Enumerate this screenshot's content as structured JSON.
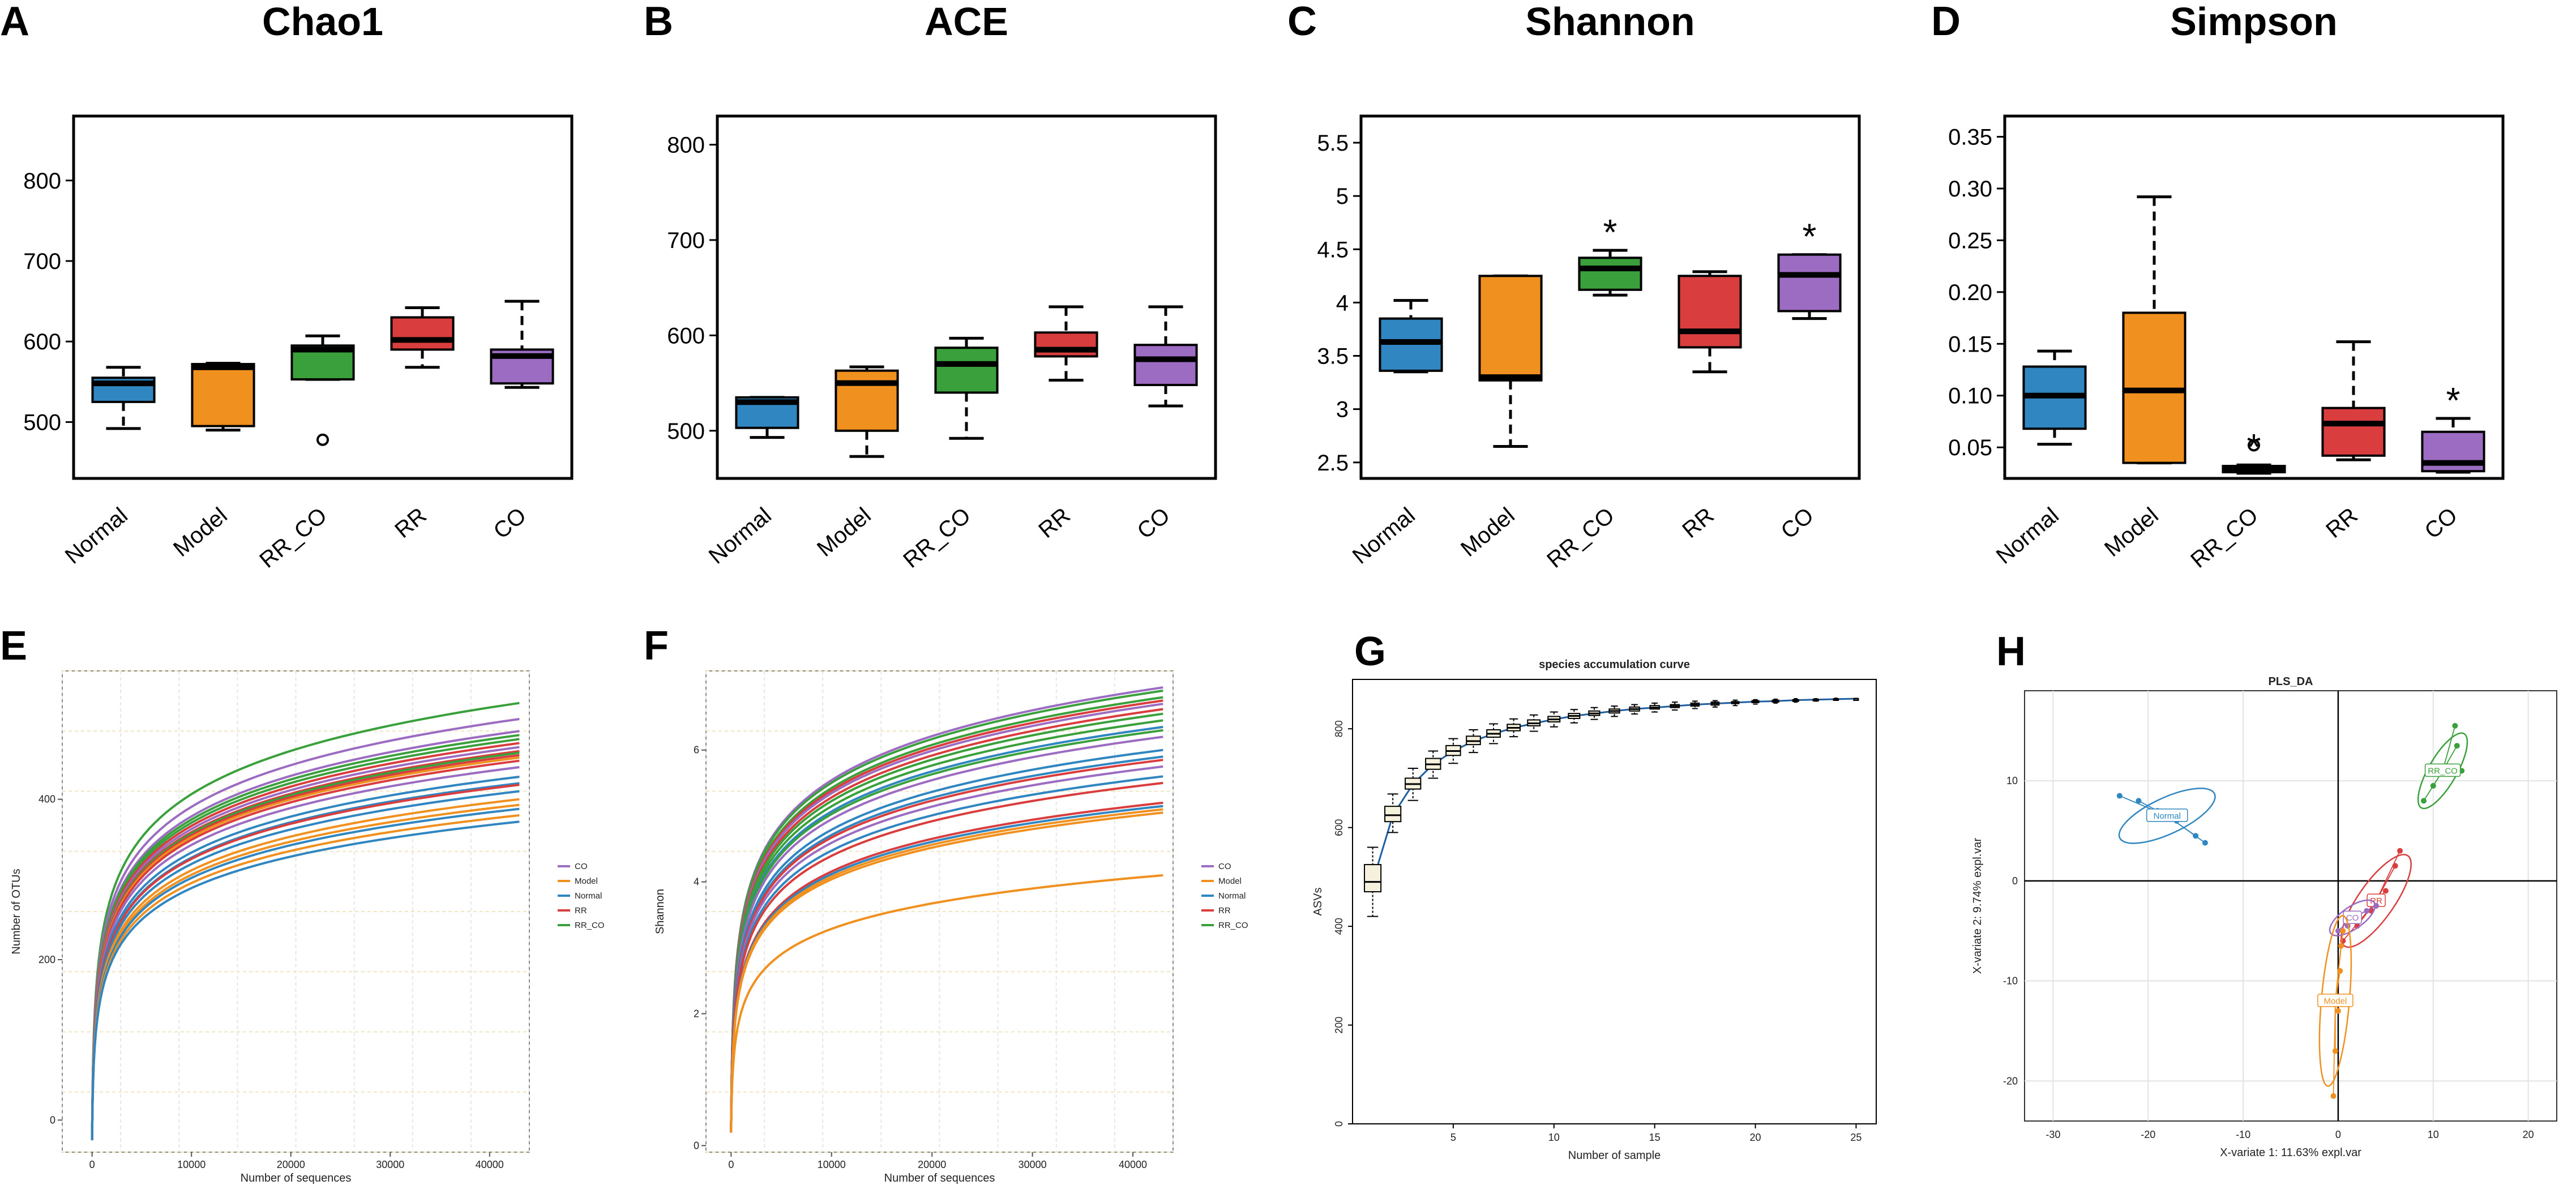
{
  "colors": {
    "Normal": "#2f86c0",
    "Model": "#f0901f",
    "RR_CO": "#39a03b",
    "RR": "#d93d3d",
    "CO": "#9b6cc1"
  },
  "chart_data": [
    {
      "id": "A",
      "type": "boxplot",
      "panel_label": "A",
      "title": "Chao1",
      "categories": [
        "Normal",
        "Model",
        "RR_CO",
        "RR",
        "CO"
      ],
      "yticks": [
        500,
        600,
        700,
        800
      ],
      "ylim": [
        430,
        880
      ],
      "boxes": [
        {
          "cat": "Normal",
          "min": 492,
          "q1": 525,
          "median": 548,
          "q3": 555,
          "max": 568,
          "outliers": [],
          "sig": ""
        },
        {
          "cat": "Model",
          "min": 490,
          "q1": 495,
          "median": 568,
          "q3": 572,
          "max": 573,
          "outliers": [],
          "sig": ""
        },
        {
          "cat": "RR_CO",
          "min": 553,
          "q1": 553,
          "median": 590,
          "q3": 595,
          "max": 607,
          "outliers": [
            478
          ],
          "sig": ""
        },
        {
          "cat": "RR",
          "min": 568,
          "q1": 590,
          "median": 602,
          "q3": 630,
          "max": 642,
          "outliers": [],
          "sig": ""
        },
        {
          "cat": "CO",
          "min": 543,
          "q1": 548,
          "median": 582,
          "q3": 590,
          "max": 650,
          "outliers": [],
          "sig": ""
        }
      ]
    },
    {
      "id": "B",
      "type": "boxplot",
      "panel_label": "B",
      "title": "ACE",
      "categories": [
        "Normal",
        "Model",
        "RR_CO",
        "RR",
        "CO"
      ],
      "yticks": [
        500,
        600,
        700,
        800
      ],
      "ylim": [
        450,
        830
      ],
      "boxes": [
        {
          "cat": "Normal",
          "min": 493,
          "q1": 503,
          "median": 530,
          "q3": 535,
          "max": 535,
          "outliers": [],
          "sig": ""
        },
        {
          "cat": "Model",
          "min": 473,
          "q1": 500,
          "median": 550,
          "q3": 563,
          "max": 567,
          "outliers": [],
          "sig": ""
        },
        {
          "cat": "RR_CO",
          "min": 492,
          "q1": 540,
          "median": 570,
          "q3": 587,
          "max": 597,
          "outliers": [],
          "sig": ""
        },
        {
          "cat": "RR",
          "min": 553,
          "q1": 578,
          "median": 585,
          "q3": 603,
          "max": 630,
          "outliers": [],
          "sig": ""
        },
        {
          "cat": "CO",
          "min": 526,
          "q1": 548,
          "median": 575,
          "q3": 590,
          "max": 630,
          "outliers": [],
          "sig": ""
        }
      ]
    },
    {
      "id": "C",
      "type": "boxplot",
      "panel_label": "C",
      "title": "Shannon",
      "categories": [
        "Normal",
        "Model",
        "RR_CO",
        "RR",
        "CO"
      ],
      "yticks": [
        2.5,
        3.0,
        3.5,
        4.0,
        4.5,
        5.0,
        5.5
      ],
      "ylim": [
        2.35,
        5.75
      ],
      "boxes": [
        {
          "cat": "Normal",
          "min": 3.35,
          "q1": 3.36,
          "median": 3.63,
          "q3": 3.85,
          "max": 4.02,
          "outliers": [],
          "sig": ""
        },
        {
          "cat": "Model",
          "min": 2.65,
          "q1": 3.27,
          "median": 3.3,
          "q3": 4.25,
          "max": 4.25,
          "outliers": [],
          "sig": ""
        },
        {
          "cat": "RR_CO",
          "min": 4.07,
          "q1": 4.12,
          "median": 4.32,
          "q3": 4.42,
          "max": 4.49,
          "outliers": [],
          "sig": "*"
        },
        {
          "cat": "RR",
          "min": 3.35,
          "q1": 3.58,
          "median": 3.73,
          "q3": 4.25,
          "max": 4.29,
          "outliers": [],
          "sig": ""
        },
        {
          "cat": "CO",
          "min": 3.85,
          "q1": 3.92,
          "median": 4.26,
          "q3": 4.45,
          "max": 4.45,
          "outliers": [],
          "sig": "*"
        }
      ]
    },
    {
      "id": "D",
      "type": "boxplot",
      "panel_label": "D",
      "title": "Simpson",
      "categories": [
        "Normal",
        "Model",
        "RR_CO",
        "RR",
        "CO"
      ],
      "yticks": [
        0.05,
        0.1,
        0.15,
        0.2,
        0.25,
        0.3,
        0.35
      ],
      "ylim": [
        0.02,
        0.37
      ],
      "boxes": [
        {
          "cat": "Normal",
          "min": 0.053,
          "q1": 0.068,
          "median": 0.1,
          "q3": 0.128,
          "max": 0.143,
          "outliers": [],
          "sig": ""
        },
        {
          "cat": "Model",
          "min": 0.035,
          "q1": 0.035,
          "median": 0.105,
          "q3": 0.18,
          "max": 0.292,
          "outliers": [],
          "sig": ""
        },
        {
          "cat": "RR_CO",
          "min": 0.025,
          "q1": 0.026,
          "median": 0.029,
          "q3": 0.032,
          "max": 0.033,
          "outliers": [
            0.052
          ],
          "sig": "*"
        },
        {
          "cat": "RR",
          "min": 0.038,
          "q1": 0.042,
          "median": 0.073,
          "q3": 0.088,
          "max": 0.152,
          "outliers": [],
          "sig": ""
        },
        {
          "cat": "CO",
          "min": 0.026,
          "q1": 0.027,
          "median": 0.035,
          "q3": 0.065,
          "max": 0.078,
          "outliers": [],
          "sig": "*"
        }
      ]
    },
    {
      "id": "E",
      "type": "line",
      "panel_label": "E",
      "title": "",
      "xlabel": "Number of sequences",
      "ylabel": "Number of OTUs",
      "xlim": [
        -3000,
        44000
      ],
      "ylim": [
        -40,
        560
      ],
      "xticks": [
        0,
        10000,
        20000,
        30000,
        40000
      ],
      "yticks": [
        0,
        200,
        400
      ],
      "x_end": 43000,
      "legend": [
        "CO",
        "Model",
        "Normal",
        "RR",
        "RR_CO"
      ],
      "series": [
        {
          "group": "RR_CO",
          "end": 520
        },
        {
          "group": "CO",
          "end": 500
        },
        {
          "group": "CO",
          "end": 485
        },
        {
          "group": "RR_CO",
          "end": 480
        },
        {
          "group": "RR_CO",
          "end": 475
        },
        {
          "group": "RR",
          "end": 470
        },
        {
          "group": "CO",
          "end": 465
        },
        {
          "group": "RR",
          "end": 460
        },
        {
          "group": "RR_CO",
          "end": 458
        },
        {
          "group": "RR",
          "end": 455
        },
        {
          "group": "Model",
          "end": 452
        },
        {
          "group": "RR",
          "end": 448
        },
        {
          "group": "CO",
          "end": 440
        },
        {
          "group": "Normal",
          "end": 428
        },
        {
          "group": "Normal",
          "end": 420
        },
        {
          "group": "RR",
          "end": 418
        },
        {
          "group": "Normal",
          "end": 410
        },
        {
          "group": "Model",
          "end": 400
        },
        {
          "group": "Model",
          "end": 393
        },
        {
          "group": "Normal",
          "end": 388
        },
        {
          "group": "Model",
          "end": 380
        },
        {
          "group": "Normal",
          "end": 372
        }
      ]
    },
    {
      "id": "F",
      "type": "line",
      "panel_label": "F",
      "title": "",
      "xlabel": "Number of sequences",
      "ylabel": "Shannon",
      "xlim": [
        -2500,
        44000
      ],
      "ylim": [
        -0.1,
        7.2
      ],
      "xticks": [
        0,
        10000,
        20000,
        30000,
        40000
      ],
      "yticks": [
        0,
        2,
        4,
        6
      ],
      "x_end": 43000,
      "legend": [
        "CO",
        "Model",
        "Normal",
        "RR",
        "RR_CO"
      ],
      "series": [
        {
          "group": "CO",
          "end": 6.95
        },
        {
          "group": "RR_CO",
          "end": 6.9
        },
        {
          "group": "RR_CO",
          "end": 6.8
        },
        {
          "group": "RR",
          "end": 6.75
        },
        {
          "group": "CO",
          "end": 6.7
        },
        {
          "group": "RR",
          "end": 6.62
        },
        {
          "group": "RR_CO",
          "end": 6.55
        },
        {
          "group": "RR_CO",
          "end": 6.45
        },
        {
          "group": "Normal",
          "end": 6.35
        },
        {
          "group": "RR_CO",
          "end": 6.3
        },
        {
          "group": "CO",
          "end": 6.2
        },
        {
          "group": "Normal",
          "end": 6.0
        },
        {
          "group": "Normal",
          "end": 5.9
        },
        {
          "group": "RR",
          "end": 5.85
        },
        {
          "group": "CO",
          "end": 5.75
        },
        {
          "group": "Normal",
          "end": 5.6
        },
        {
          "group": "RR",
          "end": 5.5
        },
        {
          "group": "RR",
          "end": 5.2
        },
        {
          "group": "Normal",
          "end": 5.15
        },
        {
          "group": "Model",
          "end": 5.1
        },
        {
          "group": "Model",
          "end": 5.05
        },
        {
          "group": "Model",
          "end": 4.1
        }
      ]
    },
    {
      "id": "G",
      "type": "boxplot-curve",
      "panel_label": "G",
      "title": "species accumulation curve",
      "xlabel": "Number of sample",
      "ylabel": "ASVs",
      "xlim": [
        0,
        26
      ],
      "ylim": [
        0,
        900
      ],
      "xticks": [
        5,
        10,
        15,
        20,
        25
      ],
      "yticks": [
        0,
        200,
        400,
        600,
        800
      ],
      "points": [
        {
          "n": 1,
          "mean": 490,
          "q1": 470,
          "q3": 525,
          "min": 420,
          "max": 560
        },
        {
          "n": 2,
          "mean": 625,
          "q1": 612,
          "q3": 643,
          "min": 590,
          "max": 668
        },
        {
          "n": 3,
          "mean": 688,
          "q1": 678,
          "q3": 700,
          "min": 655,
          "max": 720
        },
        {
          "n": 4,
          "mean": 728,
          "q1": 718,
          "q3": 740,
          "min": 700,
          "max": 755
        },
        {
          "n": 5,
          "mean": 755,
          "q1": 746,
          "q3": 766,
          "min": 730,
          "max": 780
        },
        {
          "n": 6,
          "mean": 775,
          "q1": 768,
          "q3": 785,
          "min": 752,
          "max": 798
        },
        {
          "n": 7,
          "mean": 790,
          "q1": 783,
          "q3": 798,
          "min": 770,
          "max": 810
        },
        {
          "n": 8,
          "mean": 802,
          "q1": 796,
          "q3": 809,
          "min": 784,
          "max": 820
        },
        {
          "n": 9,
          "mean": 811,
          "q1": 806,
          "q3": 818,
          "min": 795,
          "max": 828
        },
        {
          "n": 10,
          "mean": 819,
          "q1": 814,
          "q3": 825,
          "min": 804,
          "max": 834
        },
        {
          "n": 11,
          "mean": 826,
          "q1": 821,
          "q3": 831,
          "min": 812,
          "max": 839
        },
        {
          "n": 12,
          "mean": 831,
          "q1": 827,
          "q3": 836,
          "min": 819,
          "max": 843
        },
        {
          "n": 13,
          "mean": 836,
          "q1": 832,
          "q3": 840,
          "min": 825,
          "max": 846
        },
        {
          "n": 14,
          "mean": 840,
          "q1": 836,
          "q3": 844,
          "min": 830,
          "max": 849
        },
        {
          "n": 15,
          "mean": 843,
          "q1": 840,
          "q3": 847,
          "min": 834,
          "max": 852
        },
        {
          "n": 16,
          "mean": 846,
          "q1": 843,
          "q3": 849,
          "min": 838,
          "max": 854
        },
        {
          "n": 17,
          "mean": 849,
          "q1": 846,
          "q3": 852,
          "min": 841,
          "max": 856
        },
        {
          "n": 18,
          "mean": 851,
          "q1": 848,
          "q3": 854,
          "min": 844,
          "max": 857
        },
        {
          "n": 19,
          "mean": 853,
          "q1": 851,
          "q3": 855,
          "min": 847,
          "max": 858
        },
        {
          "n": 20,
          "mean": 855,
          "q1": 853,
          "q3": 857,
          "min": 850,
          "max": 859
        },
        {
          "n": 21,
          "mean": 856,
          "q1": 854,
          "q3": 858,
          "min": 852,
          "max": 860
        },
        {
          "n": 22,
          "mean": 858,
          "q1": 856,
          "q3": 859,
          "min": 854,
          "max": 861
        },
        {
          "n": 23,
          "mean": 859,
          "q1": 857,
          "q3": 860,
          "min": 856,
          "max": 861
        },
        {
          "n": 24,
          "mean": 860,
          "q1": 859,
          "q3": 861,
          "min": 858,
          "max": 862
        },
        {
          "n": 25,
          "mean": 861,
          "q1": 861,
          "q3": 861,
          "min": 861,
          "max": 861
        }
      ]
    },
    {
      "id": "H",
      "type": "scatter",
      "panel_label": "H",
      "title": "PLS_DA",
      "xlabel": "X-variate 1: 11.63% expl.var",
      "ylabel": "X-variate 2: 9.74% expl.var",
      "xlim": [
        -33,
        23
      ],
      "ylim": [
        -24,
        19
      ],
      "xticks": [
        -30,
        -20,
        -10,
        0,
        10,
        20
      ],
      "yticks": [
        -20,
        -10,
        0,
        10
      ],
      "groups": [
        {
          "name": "Normal",
          "label": "Normal",
          "centroid": [
            -18,
            6.5
          ],
          "rx": 5.5,
          "ry": 1.8,
          "angle": -25,
          "points": [
            [
              -23,
              8.5
            ],
            [
              -21,
              8
            ],
            [
              -19,
              7
            ],
            [
              -17,
              6
            ],
            [
              -15,
              4.5
            ],
            [
              -14,
              3.8
            ]
          ]
        },
        {
          "name": "RR_CO",
          "label": "RR_CO",
          "centroid": [
            11,
            11
          ],
          "rx": 4.5,
          "ry": 1.4,
          "angle": -60,
          "points": [
            [
              9,
              8
            ],
            [
              10,
              9.5
            ],
            [
              11.5,
              11
            ],
            [
              13,
              11
            ],
            [
              12.5,
              13.5
            ],
            [
              12.3,
              15.5
            ]
          ]
        },
        {
          "name": "RR",
          "label": "RR",
          "centroid": [
            4,
            -2
          ],
          "rx": 5.8,
          "ry": 1.8,
          "angle": -55,
          "points": [
            [
              0.5,
              -6
            ],
            [
              2,
              -4.5
            ],
            [
              3.5,
              -3
            ],
            [
              5,
              -1
            ],
            [
              6,
              1.5
            ],
            [
              6.5,
              3
            ]
          ]
        },
        {
          "name": "CO",
          "label": "CO",
          "centroid": [
            1.5,
            -3.7
          ],
          "rx": 2.8,
          "ry": 1.1,
          "angle": -35,
          "points": [
            [
              0,
              -5
            ],
            [
              1,
              -4.5
            ],
            [
              2,
              -3.5
            ],
            [
              3,
              -3
            ],
            [
              4,
              -2.5
            ]
          ]
        },
        {
          "name": "Model",
          "label": "Model",
          "centroid": [
            -0.3,
            -12
          ],
          "rx": 9,
          "ry": 1.4,
          "angle": -85,
          "points": [
            [
              -0.5,
              -21.5
            ],
            [
              -0.3,
              -17
            ],
            [
              0,
              -13
            ],
            [
              0.2,
              -9
            ],
            [
              0.3,
              -6.5
            ],
            [
              0.5,
              -5
            ]
          ]
        }
      ]
    }
  ]
}
